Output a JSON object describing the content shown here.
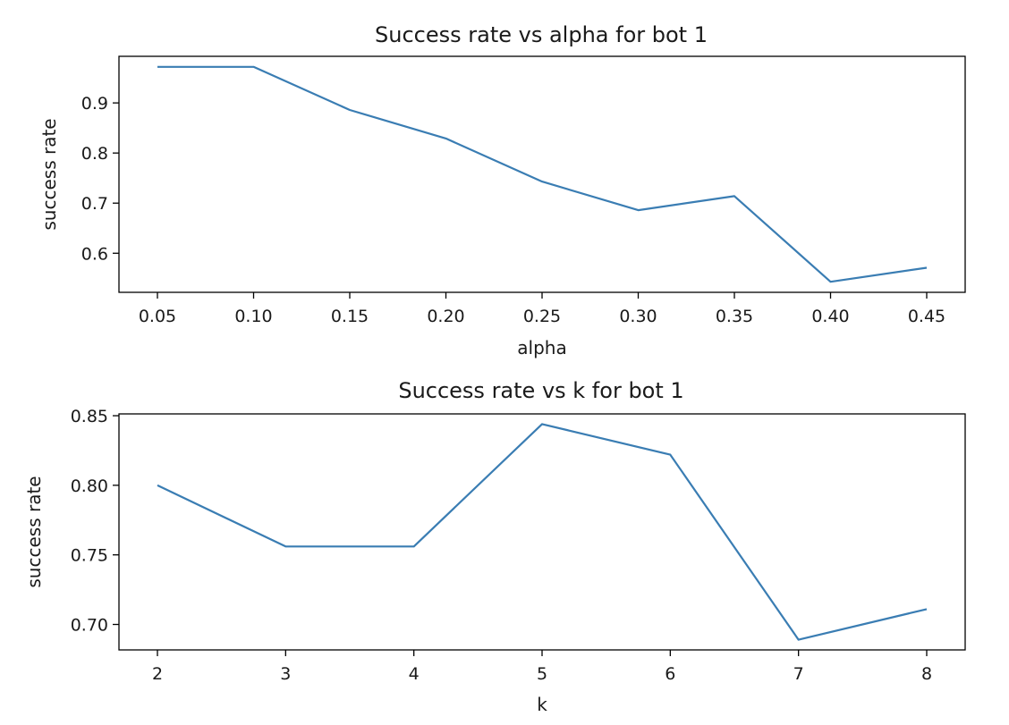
{
  "chart_data": [
    {
      "type": "line",
      "title": "Success rate vs alpha for bot 1",
      "xlabel": "alpha",
      "ylabel": "success rate",
      "x": [
        0.05,
        0.1,
        0.15,
        0.2,
        0.25,
        0.3,
        0.35,
        0.4,
        0.45
      ],
      "values": [
        0.972,
        0.972,
        0.886,
        0.829,
        0.743,
        0.686,
        0.714,
        0.543,
        0.571
      ],
      "xticks": [
        "0.05",
        "0.10",
        "0.15",
        "0.20",
        "0.25",
        "0.30",
        "0.35",
        "0.40",
        "0.45"
      ],
      "yticks": [
        "0.6",
        "0.7",
        "0.8",
        "0.9"
      ],
      "xtick_values": [
        0.05,
        0.1,
        0.15,
        0.2,
        0.25,
        0.3,
        0.35,
        0.4,
        0.45
      ],
      "ytick_values": [
        0.6,
        0.7,
        0.8,
        0.9
      ],
      "xlim": [
        0.03,
        0.47
      ],
      "ylim": [
        0.522,
        0.993
      ],
      "grid": false,
      "color": "#3a7db3"
    },
    {
      "type": "line",
      "title": "Success rate vs k for bot 1",
      "xlabel": "k",
      "ylabel": "success rate",
      "x": [
        2,
        3,
        4,
        5,
        6,
        7,
        8
      ],
      "values": [
        0.8,
        0.756,
        0.756,
        0.844,
        0.822,
        0.689,
        0.711
      ],
      "xticks": [
        "2",
        "3",
        "4",
        "5",
        "6",
        "7",
        "8"
      ],
      "yticks": [
        "0.70",
        "0.75",
        "0.80",
        "0.85"
      ],
      "xtick_values": [
        2,
        3,
        4,
        5,
        6,
        7,
        8
      ],
      "ytick_values": [
        0.7,
        0.75,
        0.8,
        0.85
      ],
      "xlim": [
        1.7,
        8.3
      ],
      "ylim": [
        0.6817,
        0.8513
      ],
      "grid": false,
      "color": "#3a7db3"
    }
  ]
}
